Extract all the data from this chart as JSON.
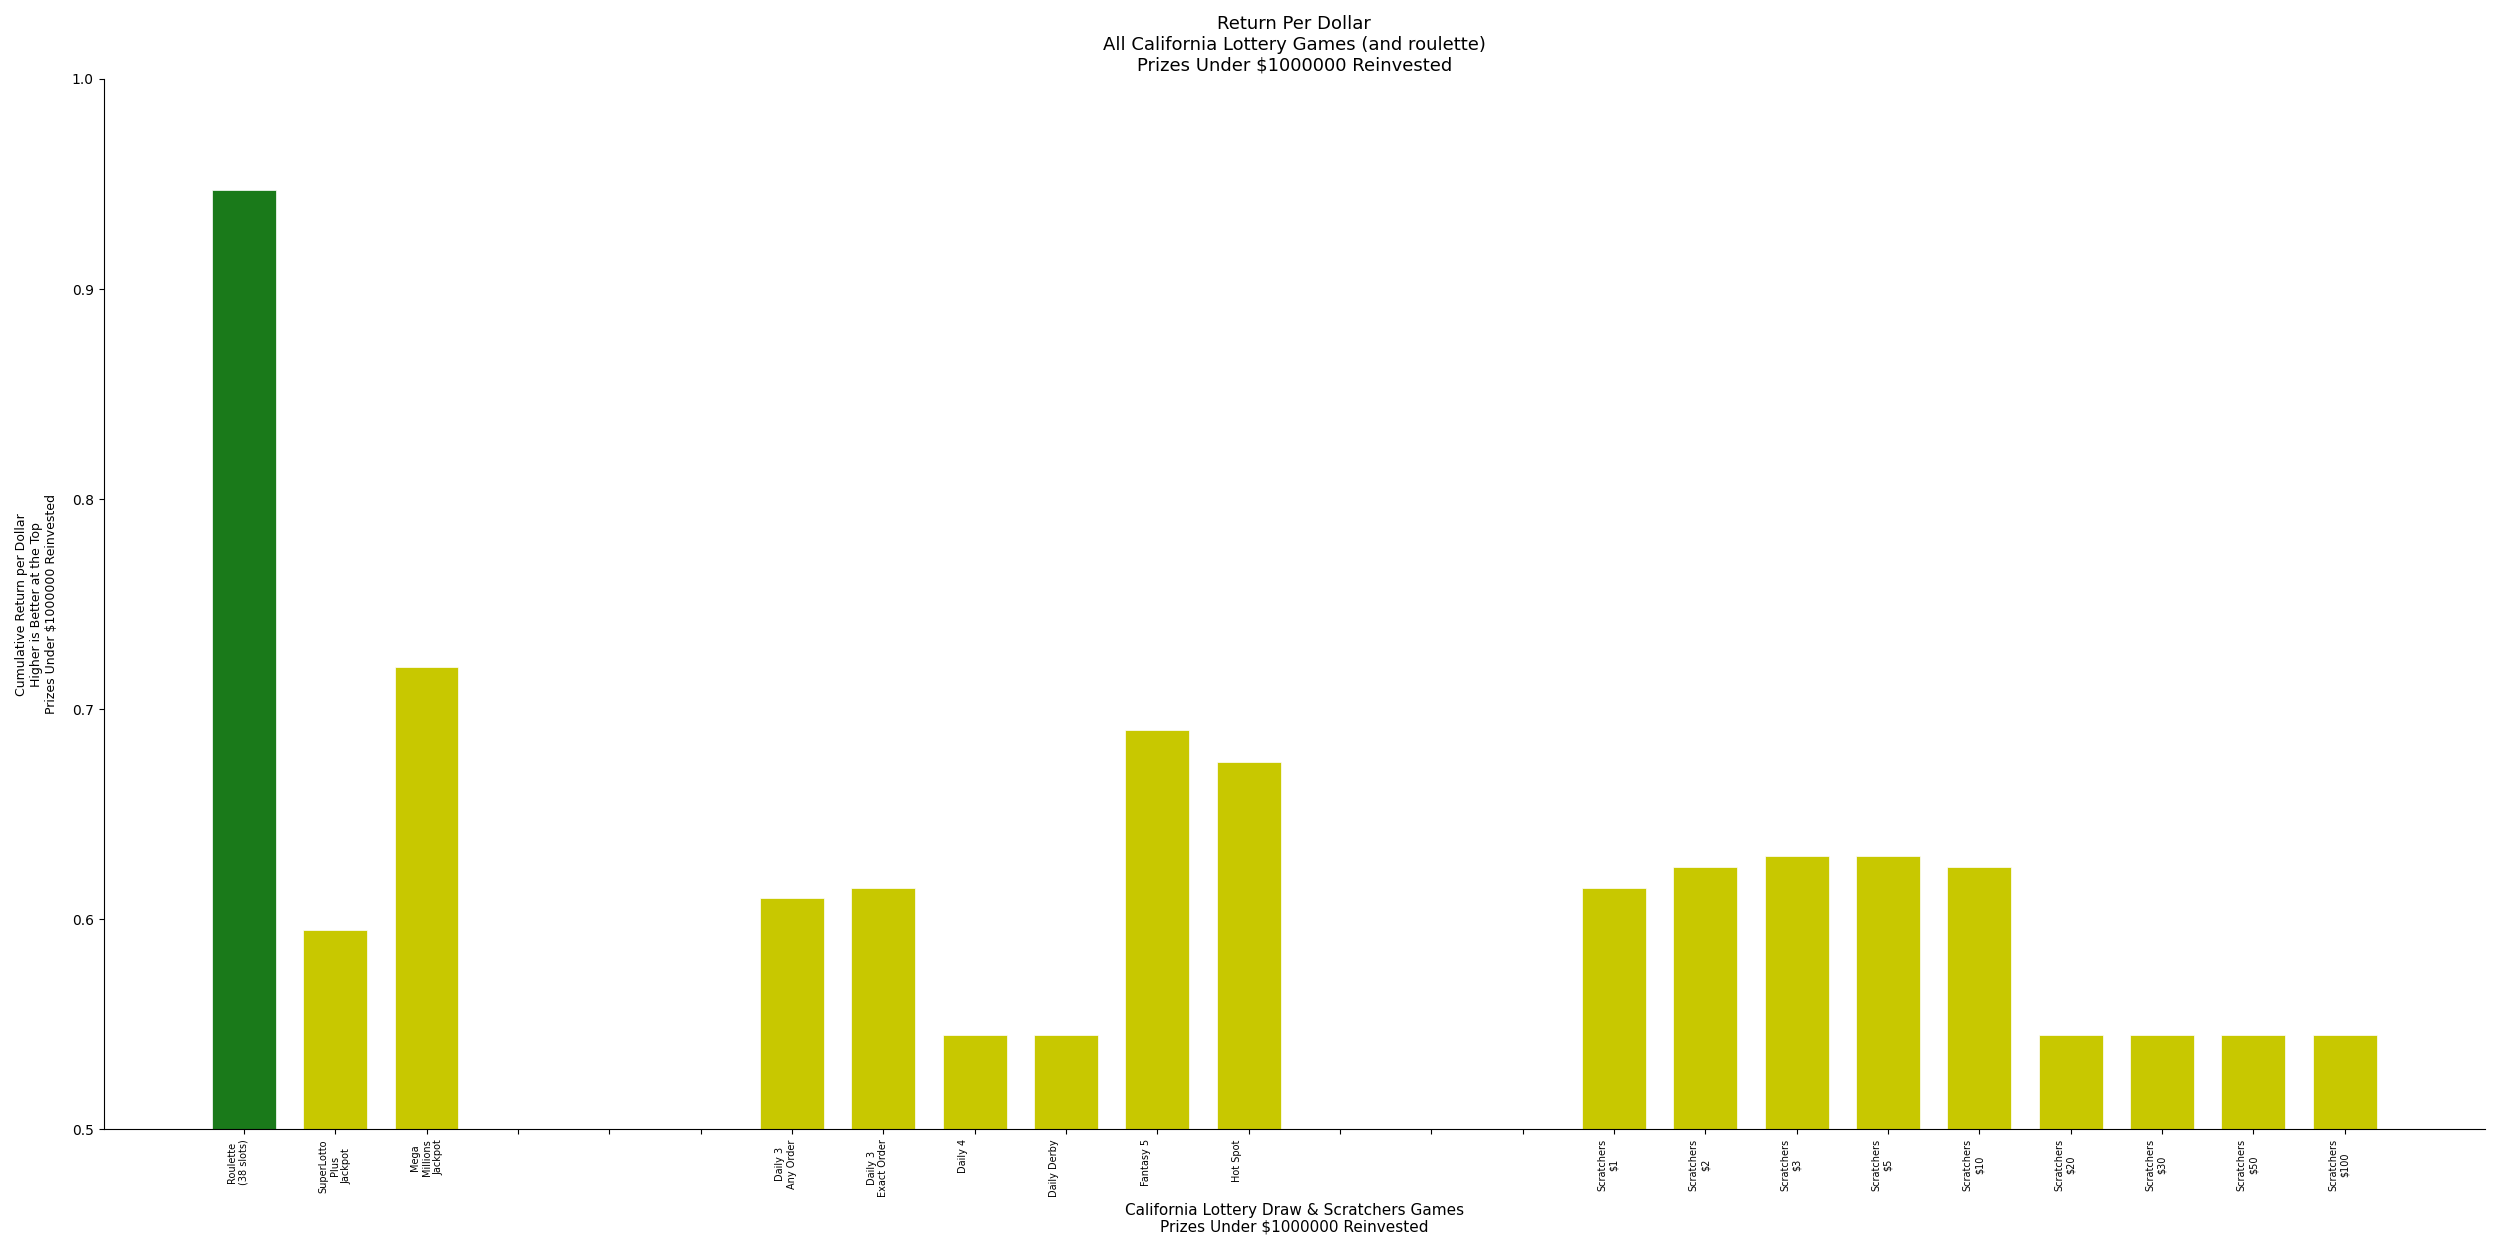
{
  "title_line1": "Return Per Dollar",
  "title_line2": "All California Lottery Games (and roulette)",
  "title_line3": "Prizes Under $1000000 Reinvested",
  "xlabel": "California Lottery Draw & Scratchers Games\nPrizes Under $1000000 Reinvested",
  "ylabel": "Cumulative Return per Dollar\nHigher is Better at the Top\nPrizes Under $1000000 Reinvested",
  "ylim": [
    0.5,
    1.0
  ],
  "yticks": [
    0.5,
    0.6,
    0.7,
    0.8,
    0.9,
    1.0
  ],
  "bg_color": "#ffffff",
  "bar_color_default": "#c8c800",
  "bar_color_first": "#1a7a1a",
  "bars": [
    {
      "label": "Roulette\n(38 slots)\n",
      "value": 0.947,
      "color": "#1a7a1a"
    },
    {
      "label": "SuperLotto\nPlus\nJackpot",
      "value": 0.595,
      "color": "#c8c800"
    },
    {
      "label": "Mega\nMillions\nJackpot",
      "value": 0.72,
      "color": "#c8c800"
    },
    {
      "label": "",
      "value": 0.5,
      "color": "#c8c800"
    },
    {
      "label": "",
      "value": 0.5,
      "color": "#c8c800"
    },
    {
      "label": "",
      "value": 0.5,
      "color": "#c8c800"
    },
    {
      "label": "Daily 3\nAny Order\n",
      "value": 0.61,
      "color": "#c8c800"
    },
    {
      "label": "Daily 3\nExact Order\n",
      "value": 0.615,
      "color": "#c8c800"
    },
    {
      "label": "Daily 4\n\n",
      "value": 0.545,
      "color": "#c8c800"
    },
    {
      "label": "Daily Derby\n\n",
      "value": 0.545,
      "color": "#c8c800"
    },
    {
      "label": "Fantasy 5\n\n",
      "value": 0.69,
      "color": "#c8c800"
    },
    {
      "label": "Hot Spot\n\n",
      "value": 0.675,
      "color": "#c8c800"
    },
    {
      "label": "",
      "value": 0.5,
      "color": "#c8c800"
    },
    {
      "label": "",
      "value": 0.5,
      "color": "#c8c800"
    },
    {
      "label": "",
      "value": 0.5,
      "color": "#c8c800"
    },
    {
      "label": "Scratchers\n$1\n",
      "value": 0.615,
      "color": "#c8c800"
    },
    {
      "label": "Scratchers\n$2\n",
      "value": 0.625,
      "color": "#c8c800"
    },
    {
      "label": "Scratchers\n$3\n",
      "value": 0.63,
      "color": "#c8c800"
    },
    {
      "label": "Scratchers\n$5\n",
      "value": 0.63,
      "color": "#c8c800"
    },
    {
      "label": "Scratchers\n$10\n",
      "value": 0.625,
      "color": "#c8c800"
    },
    {
      "label": "Scratchers\n$20\n",
      "value": 0.545,
      "color": "#c8c800"
    },
    {
      "label": "Scratchers\n$30\n",
      "value": 0.545,
      "color": "#c8c800"
    },
    {
      "label": "Scratchers\n$50\n",
      "value": 0.545,
      "color": "#c8c800"
    },
    {
      "label": "Scratchers\n$100\n",
      "value": 0.545,
      "color": "#c8c800"
    }
  ]
}
